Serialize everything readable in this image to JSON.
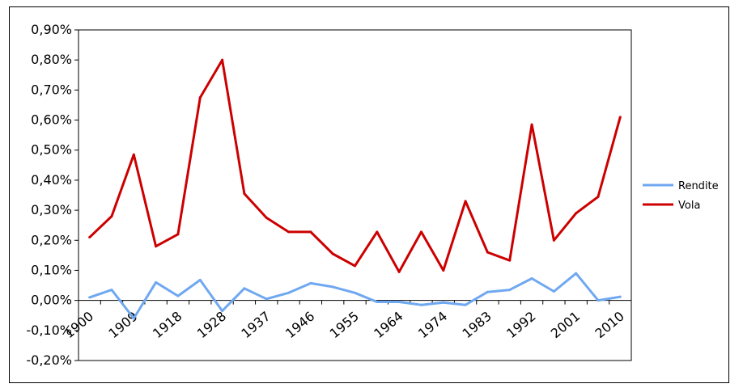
{
  "chart_data": {
    "type": "line",
    "title": "",
    "xlabel": "",
    "ylabel": "",
    "x_tick_labels": [
      "1900",
      "1909",
      "1918",
      "1928",
      "1937",
      "1946",
      "1955",
      "1964",
      "1974",
      "1983",
      "1992",
      "2001",
      "2010"
    ],
    "y_tick_labels": [
      "0,90%",
      "0,80%",
      "0,70%",
      "0,60%",
      "0,50%",
      "0,40%",
      "0,30%",
      "0,20%",
      "0,10%",
      "0,00%",
      "-0,10%",
      "-0,20%"
    ],
    "ylim": [
      -0.2,
      0.9
    ],
    "grid": false,
    "legend_position": "right",
    "series": [
      {
        "name": "Rendite",
        "color": "#6fa8f0",
        "values": [
          0.01,
          0.035,
          -0.06,
          0.06,
          0.015,
          0.068,
          -0.035,
          0.04,
          0.005,
          0.025,
          0.057,
          0.045,
          0.025,
          -0.005,
          -0.005,
          -0.015,
          -0.007,
          -0.015,
          0.028,
          0.035,
          0.073,
          0.03,
          0.09,
          0.0,
          0.012
        ]
      },
      {
        "name": "Vola",
        "color": "#cc0000",
        "values": [
          0.21,
          0.28,
          0.485,
          0.18,
          0.22,
          0.675,
          0.8,
          0.355,
          0.275,
          0.228,
          0.228,
          0.155,
          0.115,
          0.228,
          0.095,
          0.228,
          0.1,
          0.33,
          0.16,
          0.133,
          0.585,
          0.2,
          0.29,
          0.345,
          0.61
        ]
      }
    ]
  }
}
